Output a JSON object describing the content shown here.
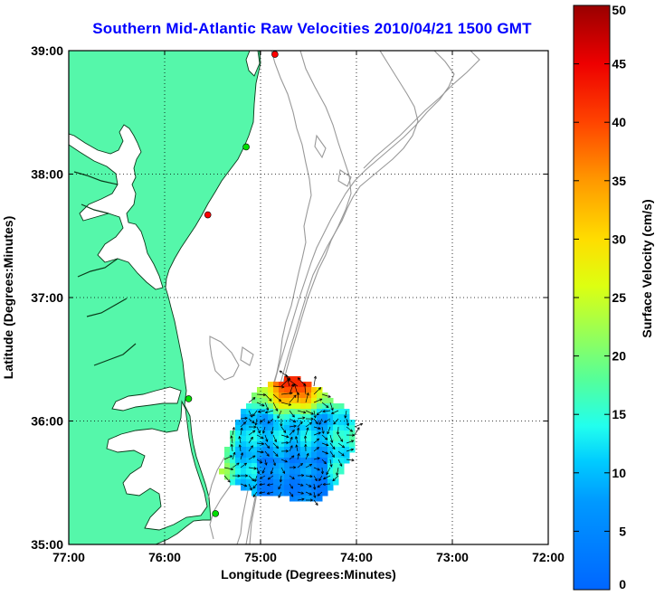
{
  "chart_data": {
    "type": "map",
    "title": "Southern Mid-Atlantic Raw Velocities 2010/04/21 1500 GMT",
    "xlabel": "Longitude (Degrees:Minutes)",
    "ylabel": "Latitude (Degrees:Minutes)",
    "xlim": [
      -77,
      -72
    ],
    "ylim": [
      35,
      39
    ],
    "x_ticks": [
      "77:00",
      "76:00",
      "75:00",
      "74:00",
      "73:00",
      "72:00"
    ],
    "y_ticks": [
      "35:00",
      "36:00",
      "37:00",
      "38:00",
      "39:00"
    ],
    "grid": true,
    "colorbar": {
      "label": "Surface Velocity (cm/s)",
      "min": 0,
      "max": 50,
      "ticks": [
        "0",
        "5",
        "10",
        "15",
        "20",
        "25",
        "30",
        "35",
        "40",
        "45",
        "50"
      ],
      "colormap": "jet"
    },
    "stations": [
      {
        "lon": -74.85,
        "lat": 38.97,
        "color": "#ff0000"
      },
      {
        "lon": -75.15,
        "lat": 38.22,
        "color": "#00dd00"
      },
      {
        "lon": -75.55,
        "lat": 37.67,
        "color": "#ff0000"
      },
      {
        "lon": -75.75,
        "lat": 36.18,
        "color": "#00dd00"
      },
      {
        "lon": -75.47,
        "lat": 35.25,
        "color": "#00dd00"
      }
    ],
    "colors": {
      "land": "#55f7aa",
      "title": "#0000ff",
      "bathymetry": "#999999"
    }
  }
}
